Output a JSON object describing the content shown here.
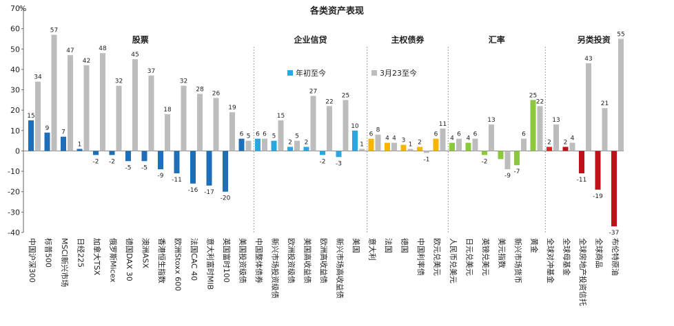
{
  "chart_data": {
    "type": "bar",
    "title": "各类资产表现",
    "ylabel": "%",
    "ylim": [
      -40,
      70
    ],
    "yticks": [
      -40,
      -30,
      -20,
      -10,
      0,
      10,
      20,
      30,
      40,
      50,
      60,
      70
    ],
    "grid": false,
    "legend": {
      "placement": "top-center"
    },
    "groups": [
      {
        "label": "股票",
        "start": 0,
        "end": 13
      },
      {
        "label": "企业信贷",
        "start": 14,
        "end": 20
      },
      {
        "label": "主权债券",
        "start": 21,
        "end": 25
      },
      {
        "label": "汇率",
        "start": 26,
        "end": 31
      },
      {
        "label": "另类投资",
        "start": 32,
        "end": 37
      }
    ],
    "categories": [
      "中国沪深300",
      "标普500",
      "MSCI新兴市场",
      "日经225",
      "加拿大TSX",
      "俄罗斯Micex",
      "德国DAX 30",
      "澳洲ASX",
      "香港恒生指数",
      "欧洲Stoxx 600",
      "法国CAC 40",
      "意大利富时MIB",
      "英国富时100",
      "美国投资级债",
      "中国整体债券",
      "新兴市场投资级债",
      "欧洲投资级债",
      "美国高收益债",
      "欧洲高收益债",
      "新兴市场高收益债",
      "美国",
      "意大利",
      "法国",
      "德国",
      "中国利率债",
      "欧元兑美元",
      "人民币兑美元",
      "日元兑美元",
      "英镑兑美元",
      "美元指数",
      "新兴市场货币",
      "黄金",
      "全球对冲基金",
      "全球母基金",
      "全球房地产投资信托",
      "全球商品",
      "布伦特原油"
    ],
    "series": [
      {
        "name": "年初至今",
        "values": [
          15,
          9,
          7,
          1,
          -2,
          -2,
          -5,
          -5,
          -9,
          -11,
          -16,
          -17,
          -20,
          6,
          6,
          5,
          2,
          2,
          -2,
          -3,
          10,
          6,
          4,
          3,
          2,
          6,
          4,
          4,
          -2,
          -4,
          -7,
          25,
          2,
          2,
          -11,
          -19,
          -37
        ],
        "labels": [
          "15",
          "9",
          "7",
          "1",
          "-2",
          "-2",
          "-5",
          "-5",
          "-9",
          "-11",
          "-16",
          "-17",
          "-20",
          "6",
          "6",
          "5",
          "2",
          "2",
          "-2",
          "-3",
          "10",
          "6",
          "4",
          "3",
          "2",
          "6",
          "4",
          "4",
          "-2",
          "",
          "-7",
          "25",
          "2",
          "2",
          "-11",
          "-19",
          "-37"
        ]
      },
      {
        "name": "3月23至今",
        "values": [
          34,
          57,
          47,
          42,
          48,
          32,
          45,
          37,
          18,
          32,
          28,
          26,
          19,
          5,
          6,
          15,
          5,
          27,
          22,
          25,
          1,
          8,
          4,
          1,
          -1,
          11,
          6,
          6,
          13,
          -9,
          6,
          22,
          13,
          4,
          43,
          21,
          55
        ],
        "labels": [
          "34",
          "57",
          "47",
          "42",
          "48",
          "32",
          "45",
          "37",
          "18",
          "32",
          "28",
          "26",
          "19",
          "5",
          "6",
          "15",
          "5",
          "27",
          "22",
          "25",
          "1",
          "8",
          "4",
          "1",
          "-1",
          "11",
          "6",
          "6",
          "13",
          "-9",
          "6",
          "22",
          "13",
          "4",
          "43",
          "21",
          "55"
        ]
      }
    ],
    "colors": {
      "stocks": "#1f6fb8",
      "credit": "#2aa7e0",
      "sovereign": "#f7b500",
      "fx": "#8cc83c",
      "alt_gold": "#d9281e",
      "alt": "#c0101a",
      "second_series": "#bdbdbd"
    }
  }
}
